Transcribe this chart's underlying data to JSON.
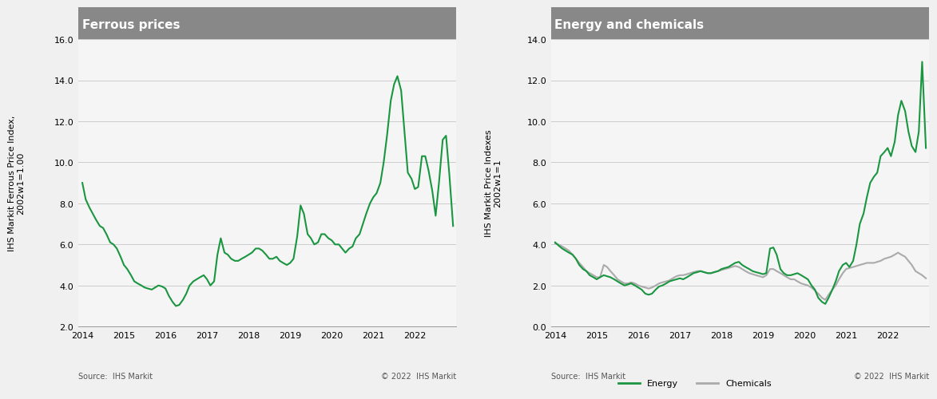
{
  "left_title": "Ferrous prices",
  "right_title": "Energy and chemicals",
  "left_ylabel": "IHS Markit Ferrous Price Index,\n2002w1=1.00",
  "right_ylabel": "IHS Markit Price Indexes\n2002w1=1",
  "left_ylim": [
    2.0,
    16.0
  ],
  "left_yticks": [
    2.0,
    4.0,
    6.0,
    8.0,
    10.0,
    12.0,
    14.0,
    16.0
  ],
  "right_ylim": [
    0.0,
    14.0
  ],
  "right_yticks": [
    0.0,
    2.0,
    4.0,
    6.0,
    8.0,
    10.0,
    12.0,
    14.0
  ],
  "xlim_left": [
    2013.9,
    2023.0
  ],
  "xlim_right": [
    2013.9,
    2023.0
  ],
  "xticks": [
    2014,
    2015,
    2016,
    2017,
    2018,
    2019,
    2020,
    2021,
    2022
  ],
  "source_text": "Source:  IHS Markit",
  "copyright_text": "© 2022  IHS Markit",
  "green_color": "#1a9641",
  "gray_color": "#aaaaaa",
  "title_bg_color": "#888888",
  "title_text_color": "#ffffff",
  "grid_color": "#cccccc",
  "background_color": "#f5f5f5",
  "ferrous_x": [
    2014.0,
    2014.08,
    2014.17,
    2014.25,
    2014.33,
    2014.42,
    2014.5,
    2014.58,
    2014.67,
    2014.75,
    2014.83,
    2014.92,
    2015.0,
    2015.08,
    2015.17,
    2015.25,
    2015.33,
    2015.42,
    2015.5,
    2015.58,
    2015.67,
    2015.75,
    2015.83,
    2015.92,
    2016.0,
    2016.08,
    2016.17,
    2016.25,
    2016.33,
    2016.42,
    2016.5,
    2016.58,
    2016.67,
    2016.75,
    2016.83,
    2016.92,
    2017.0,
    2017.08,
    2017.17,
    2017.25,
    2017.33,
    2017.42,
    2017.5,
    2017.58,
    2017.67,
    2017.75,
    2017.83,
    2017.92,
    2018.0,
    2018.08,
    2018.17,
    2018.25,
    2018.33,
    2018.42,
    2018.5,
    2018.58,
    2018.67,
    2018.75,
    2018.83,
    2018.92,
    2019.0,
    2019.08,
    2019.17,
    2019.25,
    2019.33,
    2019.42,
    2019.5,
    2019.58,
    2019.67,
    2019.75,
    2019.83,
    2019.92,
    2020.0,
    2020.08,
    2020.17,
    2020.25,
    2020.33,
    2020.42,
    2020.5,
    2020.58,
    2020.67,
    2020.75,
    2020.83,
    2020.92,
    2021.0,
    2021.08,
    2021.17,
    2021.25,
    2021.33,
    2021.42,
    2021.5,
    2021.58,
    2021.67,
    2021.75,
    2021.83,
    2021.92,
    2022.0,
    2022.08,
    2022.17,
    2022.25,
    2022.33,
    2022.42,
    2022.5,
    2022.58,
    2022.67,
    2022.75,
    2022.83,
    2022.92
  ],
  "ferrous_y": [
    9.0,
    8.2,
    7.8,
    7.5,
    7.2,
    6.9,
    6.8,
    6.5,
    6.1,
    6.0,
    5.8,
    5.4,
    5.0,
    4.8,
    4.5,
    4.2,
    4.1,
    4.0,
    3.9,
    3.85,
    3.8,
    3.9,
    4.0,
    3.95,
    3.85,
    3.5,
    3.2,
    3.0,
    3.05,
    3.3,
    3.6,
    4.0,
    4.2,
    4.3,
    4.4,
    4.5,
    4.3,
    4.0,
    4.2,
    5.5,
    6.3,
    5.6,
    5.5,
    5.3,
    5.2,
    5.2,
    5.3,
    5.4,
    5.5,
    5.6,
    5.8,
    5.8,
    5.7,
    5.5,
    5.3,
    5.3,
    5.4,
    5.2,
    5.1,
    5.0,
    5.1,
    5.3,
    6.4,
    7.9,
    7.5,
    6.5,
    6.3,
    6.0,
    6.1,
    6.5,
    6.5,
    6.3,
    6.2,
    6.0,
    6.0,
    5.8,
    5.6,
    5.8,
    5.9,
    6.3,
    6.5,
    7.0,
    7.5,
    8.0,
    8.3,
    8.5,
    9.0,
    10.0,
    11.3,
    13.0,
    13.8,
    14.2,
    13.5,
    11.5,
    9.5,
    9.2,
    8.7,
    8.8,
    10.3,
    10.3,
    9.6,
    8.6,
    7.4,
    9.0,
    11.1,
    11.3,
    9.4,
    6.9
  ],
  "energy_x": [
    2014.0,
    2014.08,
    2014.17,
    2014.25,
    2014.33,
    2014.42,
    2014.5,
    2014.58,
    2014.67,
    2014.75,
    2014.83,
    2014.92,
    2015.0,
    2015.08,
    2015.17,
    2015.25,
    2015.33,
    2015.42,
    2015.5,
    2015.58,
    2015.67,
    2015.75,
    2015.83,
    2015.92,
    2016.0,
    2016.08,
    2016.17,
    2016.25,
    2016.33,
    2016.42,
    2016.5,
    2016.58,
    2016.67,
    2016.75,
    2016.83,
    2016.92,
    2017.0,
    2017.08,
    2017.17,
    2017.25,
    2017.33,
    2017.42,
    2017.5,
    2017.58,
    2017.67,
    2017.75,
    2017.83,
    2017.92,
    2018.0,
    2018.08,
    2018.17,
    2018.25,
    2018.33,
    2018.42,
    2018.5,
    2018.58,
    2018.67,
    2018.75,
    2018.83,
    2018.92,
    2019.0,
    2019.08,
    2019.17,
    2019.25,
    2019.33,
    2019.42,
    2019.5,
    2019.58,
    2019.67,
    2019.75,
    2019.83,
    2019.92,
    2020.0,
    2020.08,
    2020.17,
    2020.25,
    2020.33,
    2020.42,
    2020.5,
    2020.58,
    2020.67,
    2020.75,
    2020.83,
    2020.92,
    2021.0,
    2021.08,
    2021.17,
    2021.25,
    2021.33,
    2021.42,
    2021.5,
    2021.58,
    2021.67,
    2021.75,
    2021.83,
    2021.92,
    2022.0,
    2022.08,
    2022.17,
    2022.25,
    2022.33,
    2022.42,
    2022.5,
    2022.58,
    2022.67,
    2022.75,
    2022.83,
    2022.92
  ],
  "energy_y": [
    4.1,
    3.95,
    3.8,
    3.7,
    3.6,
    3.5,
    3.3,
    3.0,
    2.8,
    2.7,
    2.5,
    2.4,
    2.3,
    2.4,
    2.5,
    2.45,
    2.4,
    2.3,
    2.2,
    2.1,
    2.0,
    2.05,
    2.1,
    2.0,
    1.9,
    1.8,
    1.6,
    1.55,
    1.6,
    1.8,
    1.95,
    2.0,
    2.1,
    2.2,
    2.25,
    2.3,
    2.35,
    2.3,
    2.4,
    2.5,
    2.6,
    2.65,
    2.7,
    2.65,
    2.6,
    2.6,
    2.65,
    2.7,
    2.8,
    2.85,
    2.9,
    3.0,
    3.1,
    3.15,
    3.0,
    2.9,
    2.8,
    2.7,
    2.65,
    2.6,
    2.55,
    2.6,
    3.8,
    3.85,
    3.5,
    2.8,
    2.6,
    2.5,
    2.5,
    2.55,
    2.6,
    2.5,
    2.4,
    2.3,
    2.0,
    1.8,
    1.4,
    1.2,
    1.1,
    1.4,
    1.8,
    2.2,
    2.7,
    3.0,
    3.1,
    2.9,
    3.2,
    4.0,
    5.0,
    5.5,
    6.3,
    7.0,
    7.3,
    7.5,
    8.3,
    8.5,
    8.7,
    8.3,
    9.0,
    10.3,
    11.0,
    10.5,
    9.5,
    8.8,
    8.5,
    9.5,
    12.9,
    8.7
  ],
  "chemicals_x": [
    2014.0,
    2014.08,
    2014.17,
    2014.25,
    2014.33,
    2014.42,
    2014.5,
    2014.58,
    2014.67,
    2014.75,
    2014.83,
    2014.92,
    2015.0,
    2015.08,
    2015.17,
    2015.25,
    2015.33,
    2015.42,
    2015.5,
    2015.58,
    2015.67,
    2015.75,
    2015.83,
    2015.92,
    2016.0,
    2016.08,
    2016.17,
    2016.25,
    2016.33,
    2016.42,
    2016.5,
    2016.58,
    2016.67,
    2016.75,
    2016.83,
    2016.92,
    2017.0,
    2017.08,
    2017.17,
    2017.25,
    2017.33,
    2017.42,
    2017.5,
    2017.58,
    2017.67,
    2017.75,
    2017.83,
    2017.92,
    2018.0,
    2018.08,
    2018.17,
    2018.25,
    2018.33,
    2018.42,
    2018.5,
    2018.58,
    2018.67,
    2018.75,
    2018.83,
    2018.92,
    2019.0,
    2019.08,
    2019.17,
    2019.25,
    2019.33,
    2019.42,
    2019.5,
    2019.58,
    2019.67,
    2019.75,
    2019.83,
    2019.92,
    2020.0,
    2020.08,
    2020.17,
    2020.25,
    2020.33,
    2020.42,
    2020.5,
    2020.58,
    2020.67,
    2020.75,
    2020.83,
    2020.92,
    2021.0,
    2021.08,
    2021.17,
    2021.25,
    2021.33,
    2021.42,
    2021.5,
    2021.58,
    2021.67,
    2021.75,
    2021.83,
    2021.92,
    2022.0,
    2022.08,
    2022.17,
    2022.25,
    2022.33,
    2022.42,
    2022.5,
    2022.58,
    2022.67,
    2022.75,
    2022.83,
    2022.92
  ],
  "chemicals_y": [
    4.05,
    4.0,
    3.9,
    3.8,
    3.7,
    3.5,
    3.3,
    3.1,
    2.9,
    2.7,
    2.6,
    2.5,
    2.4,
    2.4,
    3.0,
    2.9,
    2.7,
    2.5,
    2.3,
    2.2,
    2.1,
    2.1,
    2.15,
    2.1,
    2.0,
    1.95,
    1.9,
    1.85,
    1.9,
    2.0,
    2.1,
    2.15,
    2.2,
    2.25,
    2.35,
    2.45,
    2.5,
    2.5,
    2.55,
    2.6,
    2.65,
    2.7,
    2.7,
    2.65,
    2.6,
    2.6,
    2.65,
    2.7,
    2.75,
    2.8,
    2.85,
    2.9,
    2.95,
    2.9,
    2.8,
    2.7,
    2.6,
    2.55,
    2.5,
    2.45,
    2.4,
    2.5,
    2.8,
    2.8,
    2.7,
    2.6,
    2.5,
    2.4,
    2.3,
    2.3,
    2.2,
    2.1,
    2.05,
    2.0,
    1.9,
    1.75,
    1.6,
    1.4,
    1.3,
    1.55,
    1.8,
    2.0,
    2.3,
    2.6,
    2.8,
    2.85,
    2.9,
    2.95,
    3.0,
    3.05,
    3.1,
    3.1,
    3.1,
    3.15,
    3.2,
    3.3,
    3.35,
    3.4,
    3.5,
    3.6,
    3.5,
    3.4,
    3.2,
    3.0,
    2.7,
    2.6,
    2.5,
    2.35
  ]
}
